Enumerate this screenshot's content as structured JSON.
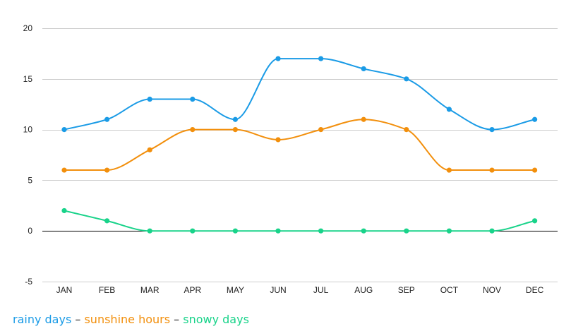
{
  "chart_data": {
    "type": "line",
    "categories": [
      "JAN",
      "FEB",
      "MAR",
      "APR",
      "MAY",
      "JUN",
      "JUL",
      "AUG",
      "SEP",
      "OCT",
      "NOV",
      "DEC"
    ],
    "ylim": [
      -5,
      20
    ],
    "yticks": [
      -5,
      0,
      5,
      10,
      15,
      20
    ],
    "grid": true,
    "legend_position": "bottom-left",
    "series": [
      {
        "name": "rainy days",
        "color": "#1a9be6",
        "values": [
          10,
          11,
          13,
          13,
          11,
          17,
          17,
          16,
          15,
          12,
          10,
          11
        ]
      },
      {
        "name": "sunshine hours",
        "color": "#f28f0c",
        "values": [
          6,
          6,
          8,
          10,
          10,
          9,
          10,
          11,
          10,
          6,
          6,
          6
        ]
      },
      {
        "name": "snowy days",
        "color": "#19d38a",
        "values": [
          2,
          1,
          0,
          0,
          0,
          0,
          0,
          0,
          0,
          0,
          0,
          1
        ]
      }
    ]
  },
  "legend": {
    "separator": " – "
  }
}
